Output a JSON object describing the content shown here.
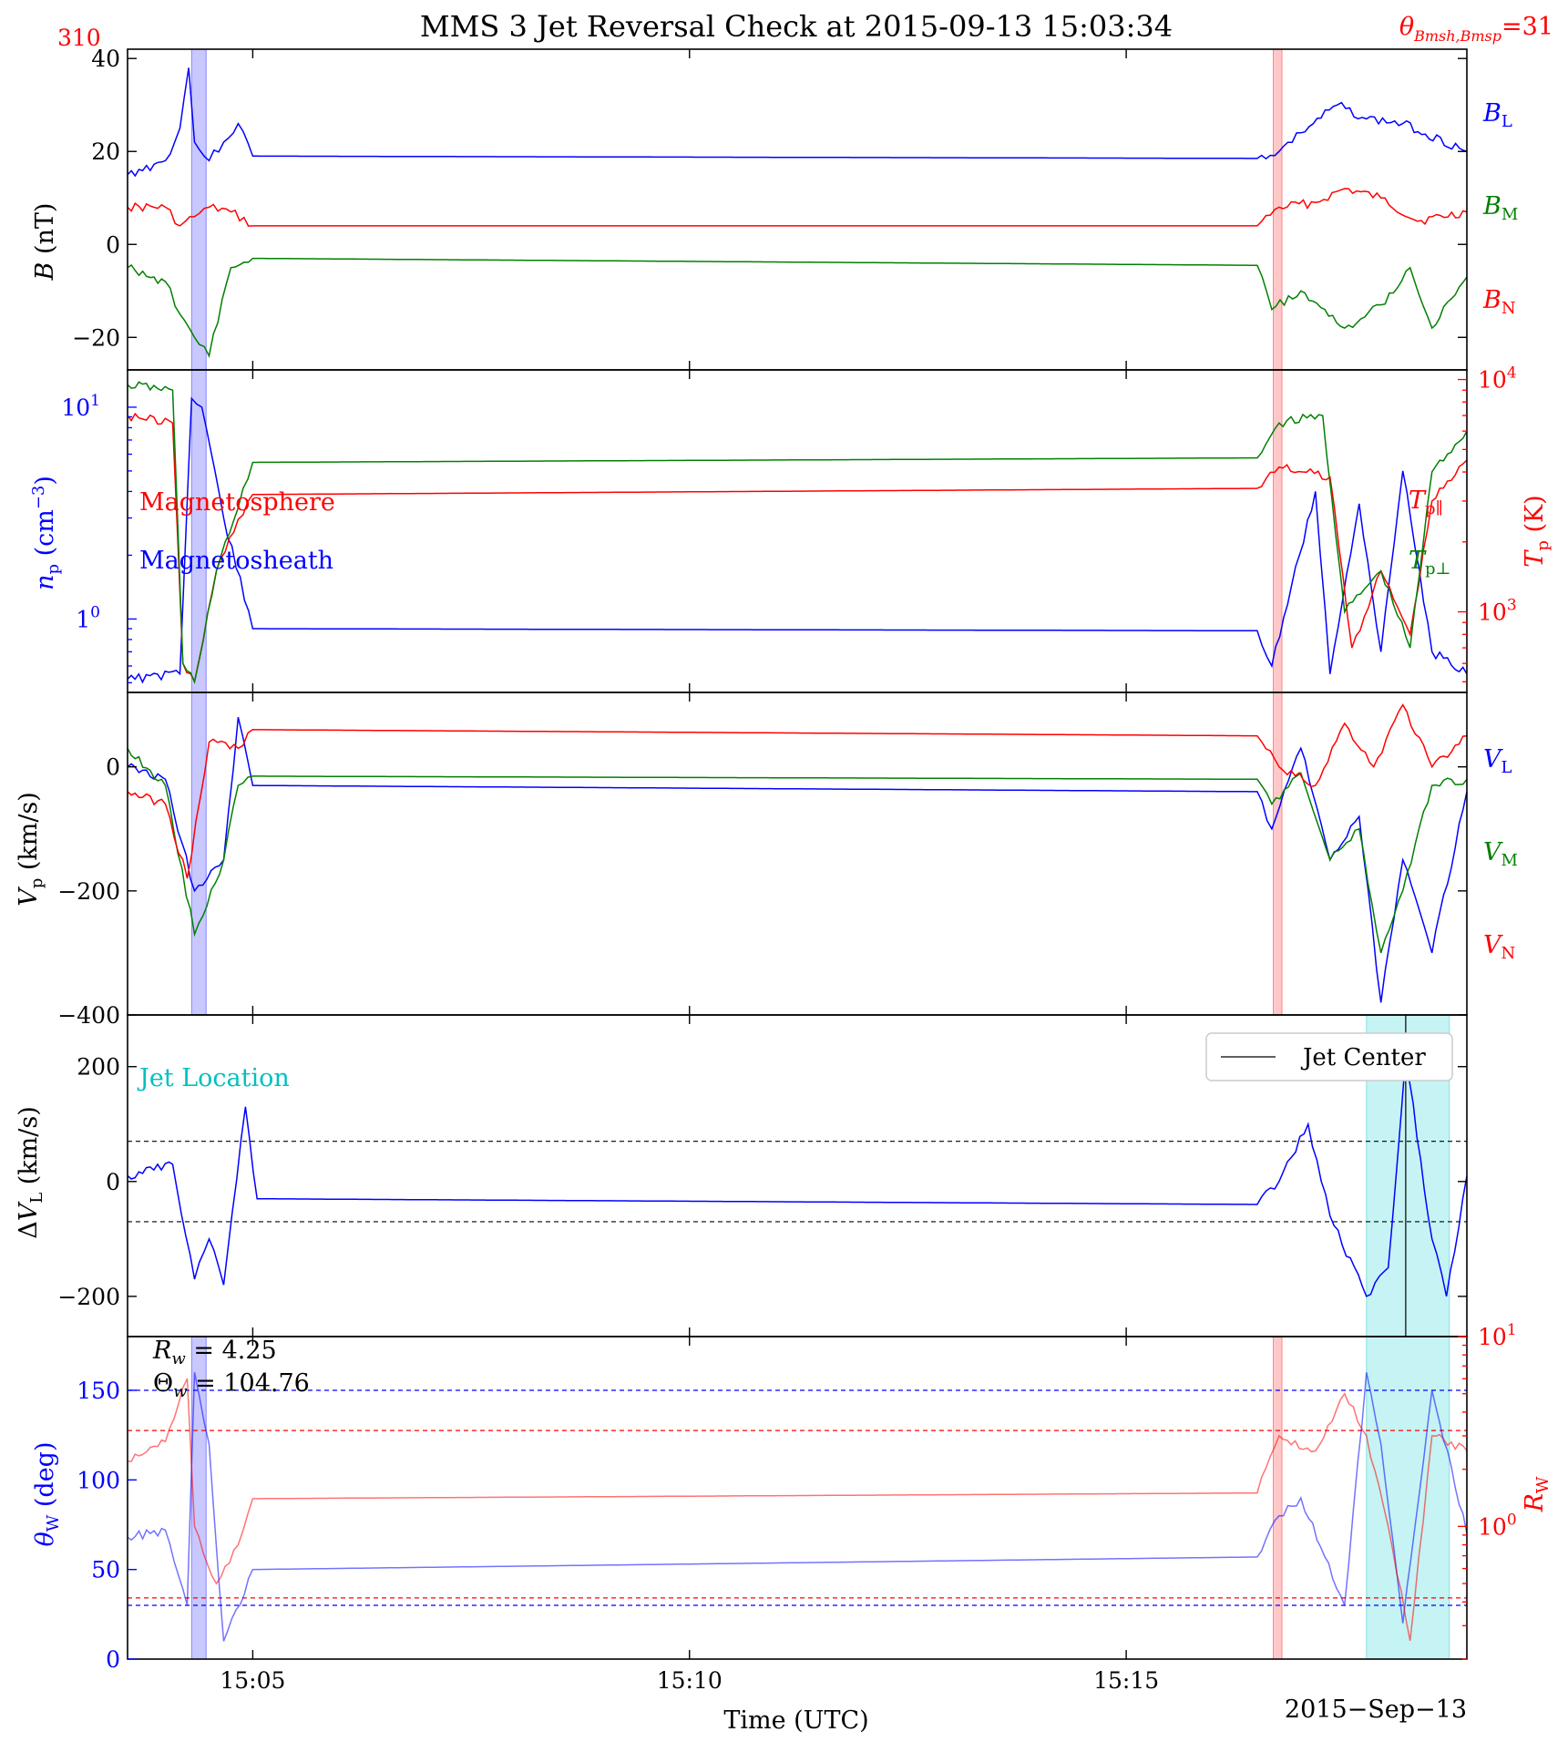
{
  "title": "MMS 3 Jet Reversal Check at 2015-09-13 15:03:34",
  "corner_left_value": "310",
  "corner_right_label": "θ",
  "corner_right_sub": "Bmsh,Bmsp",
  "corner_right_value": "=31",
  "xlabel": "Time (UTC)",
  "date_label": "2015−Sep−13",
  "colors": {
    "blue": "#0000ff",
    "red": "#ff0000",
    "green": "#008000",
    "cyan": "#00c0c0",
    "shade_blue": "#aaaaff",
    "shade_red": "#ffaaaa",
    "shade_cyan": "#a8ecec"
  },
  "chart_data": [
    {
      "type": "line",
      "panel": "B",
      "ylabel": "B (nT)",
      "x_range": [
        "15:03:34",
        "15:18:54"
      ],
      "xticks": [
        "15:05",
        "15:10",
        "15:15"
      ],
      "ylim": [
        -27,
        42
      ],
      "yticks": [
        "40",
        "20",
        "0",
        "−20"
      ],
      "legend_right": [
        "BL",
        "BM",
        "BN"
      ],
      "shaded_intervals": [
        {
          "start": "15:04:18",
          "end": "15:04:28",
          "color": "blue"
        },
        {
          "start": "15:16:41",
          "end": "15:16:47",
          "color": "red"
        }
      ],
      "series": [
        {
          "name": "BL",
          "color": "blue",
          "x": [
            "15:03:34",
            "15:04:00",
            "15:04:10",
            "15:04:16",
            "15:04:20",
            "15:04:30",
            "15:04:40",
            "15:04:50",
            "15:05:00",
            "15:16:30",
            "15:16:45",
            "15:17:00",
            "15:17:25",
            "15:17:45",
            "15:18:10",
            "15:18:54"
          ],
          "y": [
            15,
            18,
            25,
            38,
            22,
            18,
            22,
            26,
            19,
            18.5,
            20,
            24,
            30,
            27,
            26,
            20
          ]
        },
        {
          "name": "BM",
          "color": "green",
          "x": [
            "15:03:34",
            "15:04:00",
            "15:04:10",
            "15:04:20",
            "15:04:30",
            "15:04:45",
            "15:05:00",
            "15:16:30",
            "15:16:40",
            "15:17:00",
            "15:17:30",
            "15:17:55",
            "15:18:15",
            "15:18:30",
            "15:18:54"
          ],
          "y": [
            -5,
            -8,
            -15,
            -20,
            -24,
            -5,
            -3,
            -4.5,
            -14,
            -10,
            -18,
            -13,
            -5,
            -18,
            -7
          ]
        },
        {
          "name": "BN",
          "color": "red",
          "x": [
            "15:03:34",
            "15:04:00",
            "15:04:10",
            "15:04:20",
            "15:04:30",
            "15:04:45",
            "15:05:00",
            "15:16:30",
            "15:16:45",
            "15:17:10",
            "15:17:30",
            "15:17:55",
            "15:18:20",
            "15:18:54"
          ],
          "y": [
            8,
            8,
            4,
            6,
            8,
            7,
            4,
            4,
            8,
            9,
            12,
            10,
            5,
            7
          ]
        }
      ]
    },
    {
      "type": "line",
      "panel": "density_temperature",
      "ylabel_left": "n_p (cm^-3)",
      "ylabel_right": "T_p (K)",
      "yscale_left": "log",
      "ylim_left": [
        0.45,
        15
      ],
      "yscale_right": "log",
      "ylim_right": [
        450,
        11000
      ],
      "yticks_left": [
        "10",
        "1"
      ],
      "yticks_right": [
        "10",
        "10"
      ],
      "tick_exponents_left": [
        "1",
        "0"
      ],
      "tick_exponents_right": [
        "4",
        "3"
      ],
      "annotations": [
        "Magnetosphere",
        "Magnetosheath"
      ],
      "legend_right": [
        "T_p∥",
        "T_p⊥"
      ],
      "shaded_intervals": [
        {
          "start": "15:04:18",
          "end": "15:04:28",
          "color": "blue"
        },
        {
          "start": "15:16:41",
          "end": "15:16:47",
          "color": "red"
        }
      ],
      "series": [
        {
          "name": "n_p",
          "color": "blue",
          "axis": "left",
          "x": [
            "15:03:34",
            "15:04:10",
            "15:04:18",
            "15:04:25",
            "15:04:40",
            "15:05:00",
            "15:16:30",
            "15:16:40",
            "15:17:10",
            "15:17:20",
            "15:17:40",
            "15:17:55",
            "15:18:10",
            "15:18:30",
            "15:18:54"
          ],
          "y": [
            0.52,
            0.55,
            11,
            10,
            3,
            0.9,
            0.88,
            0.6,
            4,
            0.55,
            3.5,
            0.7,
            5,
            0.7,
            0.55
          ]
        },
        {
          "name": "T_p∥",
          "color": "red",
          "axis": "right",
          "x": [
            "15:03:34",
            "15:04:05",
            "15:04:12",
            "15:04:20",
            "15:04:35",
            "15:04:50",
            "15:05:00",
            "15:16:30",
            "15:16:45",
            "15:17:20",
            "15:17:35",
            "15:17:55",
            "15:18:15",
            "15:18:30",
            "15:18:54"
          ],
          "y": [
            7000,
            6500,
            600,
            500,
            1500,
            2500,
            3200,
            3400,
            4200,
            3800,
            700,
            1500,
            800,
            3000,
            4500
          ]
        },
        {
          "name": "T_p⊥",
          "color": "green",
          "axis": "right",
          "x": [
            "15:03:34",
            "15:04:05",
            "15:04:12",
            "15:04:20",
            "15:04:35",
            "15:04:50",
            "15:05:00",
            "15:16:30",
            "15:16:45",
            "15:17:15",
            "15:17:30",
            "15:17:55",
            "15:18:15",
            "15:18:30",
            "15:18:54"
          ],
          "y": [
            9500,
            9000,
            600,
            500,
            1500,
            2800,
            4400,
            4600,
            6500,
            7000,
            1000,
            1500,
            700,
            4000,
            6000
          ]
        }
      ]
    },
    {
      "type": "line",
      "panel": "velocity",
      "ylabel": "V_p (km/s)",
      "ylim": [
        -400,
        120
      ],
      "yticks": [
        "0",
        "−200",
        "−400"
      ],
      "legend_right": [
        "VL",
        "VM",
        "VN"
      ],
      "shaded_intervals": [
        {
          "start": "15:04:18",
          "end": "15:04:28",
          "color": "blue"
        },
        {
          "start": "15:16:41",
          "end": "15:16:47",
          "color": "red"
        }
      ],
      "series": [
        {
          "name": "VL",
          "color": "blue",
          "x": [
            "15:03:34",
            "15:04:00",
            "15:04:20",
            "15:04:40",
            "15:04:50",
            "15:05:00",
            "15:16:30",
            "15:16:40",
            "15:17:00",
            "15:17:20",
            "15:17:40",
            "15:17:55",
            "15:18:10",
            "15:18:30",
            "15:18:54"
          ],
          "y": [
            0,
            -20,
            -200,
            -150,
            80,
            -30,
            -40,
            -100,
            30,
            -150,
            -80,
            -380,
            -150,
            -300,
            -40
          ]
        },
        {
          "name": "VM",
          "color": "green",
          "x": [
            "15:03:34",
            "15:04:00",
            "15:04:20",
            "15:04:40",
            "15:04:50",
            "15:05:00",
            "15:16:30",
            "15:16:40",
            "15:17:00",
            "15:17:20",
            "15:17:40",
            "15:17:55",
            "15:18:10",
            "15:18:30",
            "15:18:54"
          ],
          "y": [
            30,
            -30,
            -270,
            -150,
            -30,
            -15,
            -20,
            -60,
            -10,
            -150,
            -100,
            -300,
            -200,
            -30,
            -20
          ]
        },
        {
          "name": "VN",
          "color": "red",
          "x": [
            "15:03:34",
            "15:04:00",
            "15:04:15",
            "15:04:30",
            "15:04:50",
            "15:05:00",
            "15:16:30",
            "15:16:45",
            "15:17:10",
            "15:17:30",
            "15:17:50",
            "15:18:10",
            "15:18:30",
            "15:18:54"
          ],
          "y": [
            -40,
            -60,
            -180,
            40,
            30,
            60,
            50,
            0,
            -30,
            70,
            0,
            100,
            0,
            50
          ]
        }
      ]
    },
    {
      "type": "line",
      "panel": "delta_VL",
      "ylabel": "ΔV_L (km/s)",
      "ylim": [
        -270,
        290
      ],
      "yticks": [
        "200",
        "0",
        "−200"
      ],
      "hlines": [
        70,
        -70
      ],
      "annotation": "Jet Location",
      "legend": [
        "Jet Center"
      ],
      "jet_center": "15:18:12",
      "jet_location_interval": {
        "start": "15:17:45",
        "end": "15:18:42"
      },
      "series": [
        {
          "name": "ΔV_L",
          "color": "blue",
          "x": [
            "15:03:34",
            "15:04:05",
            "15:04:20",
            "15:04:30",
            "15:04:40",
            "15:04:55",
            "15:05:03",
            "15:16:30",
            "15:16:45",
            "15:17:05",
            "15:17:20",
            "15:17:45",
            "15:18:00",
            "15:18:12",
            "15:18:30",
            "15:18:40",
            "15:18:54"
          ],
          "y": [
            10,
            30,
            -170,
            -100,
            -180,
            130,
            -30,
            -40,
            0,
            100,
            -60,
            -200,
            -150,
            220,
            -100,
            -200,
            10
          ]
        }
      ]
    },
    {
      "type": "line",
      "panel": "walen",
      "ylabel_left": "θ_W (deg)",
      "ylabel_right": "R_W",
      "ylim_left": [
        0,
        180
      ],
      "yticks_left": [
        "150",
        "100",
        "50",
        "0"
      ],
      "yscale_right": "log",
      "ylim_right": [
        0.2,
        10
      ],
      "yticks_right": [
        "10",
        "10"
      ],
      "tick_exponents_right": [
        "1",
        "0"
      ],
      "text_lines": [
        {
          "lhs": "R",
          "sub": "w",
          "rhs": "= 4.25"
        },
        {
          "lhs": "Θ",
          "sub": "w",
          "rhs": "= 104.76"
        }
      ],
      "hlines_left": [
        150,
        30
      ],
      "hlines_right": [
        3.2,
        0.42
      ],
      "shaded_intervals": [
        {
          "start": "15:04:18",
          "end": "15:04:28",
          "color": "blue"
        },
        {
          "start": "15:16:41",
          "end": "15:16:47",
          "color": "red"
        },
        {
          "start": "15:17:45",
          "end": "15:18:42",
          "color": "cyan"
        }
      ],
      "series": [
        {
          "name": "θ_W",
          "color": "blue",
          "axis": "left",
          "x": [
            "15:03:34",
            "15:04:00",
            "15:04:15",
            "15:04:20",
            "15:04:30",
            "15:04:40",
            "15:05:00",
            "15:16:30",
            "15:16:45",
            "15:17:00",
            "15:17:30",
            "15:17:45",
            "15:17:55",
            "15:18:10",
            "15:18:30",
            "15:18:54"
          ],
          "y": [
            68,
            72,
            30,
            160,
            120,
            10,
            50,
            57,
            80,
            90,
            30,
            160,
            120,
            20,
            150,
            70
          ]
        },
        {
          "name": "R_W",
          "color": "red",
          "axis": "right",
          "x": [
            "15:03:34",
            "15:04:00",
            "15:04:15",
            "15:04:20",
            "15:04:35",
            "15:04:50",
            "15:05:00",
            "15:16:30",
            "15:16:45",
            "15:17:10",
            "15:17:30",
            "15:17:45",
            "15:18:00",
            "15:18:15",
            "15:18:30",
            "15:18:54"
          ],
          "y": [
            2.2,
            2.8,
            6,
            1,
            0.5,
            0.8,
            1.4,
            1.5,
            3,
            2.5,
            5,
            3,
            1,
            0.25,
            3,
            2.5
          ]
        }
      ]
    }
  ]
}
